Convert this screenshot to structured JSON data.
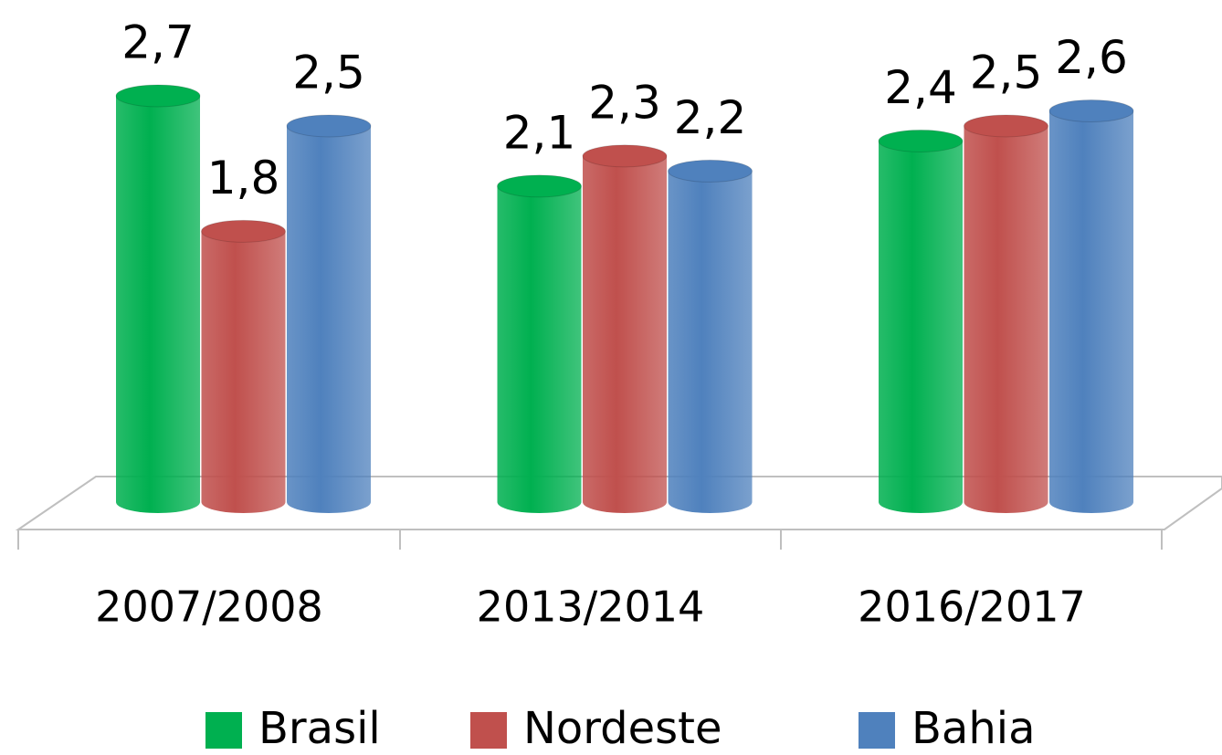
{
  "chart_data": {
    "type": "bar3d",
    "categories": [
      "2007/2008",
      "2013/2014",
      "2016/2017"
    ],
    "series": [
      {
        "name": "Brasil",
        "color": "#00b050",
        "values": [
          2.7,
          2.1,
          2.4
        ],
        "value_labels": [
          "2,7",
          "2,1",
          "2,4"
        ]
      },
      {
        "name": "Nordeste",
        "color": "#c0504d",
        "values": [
          1.8,
          2.3,
          2.5
        ],
        "value_labels": [
          "1,8",
          "2,3",
          "2,5"
        ]
      },
      {
        "name": "Bahia",
        "color": "#4f81bd",
        "values": [
          2.5,
          2.2,
          2.6
        ],
        "value_labels": [
          "2,5",
          "2,2",
          "2,6"
        ]
      }
    ],
    "legend": "bottom"
  }
}
